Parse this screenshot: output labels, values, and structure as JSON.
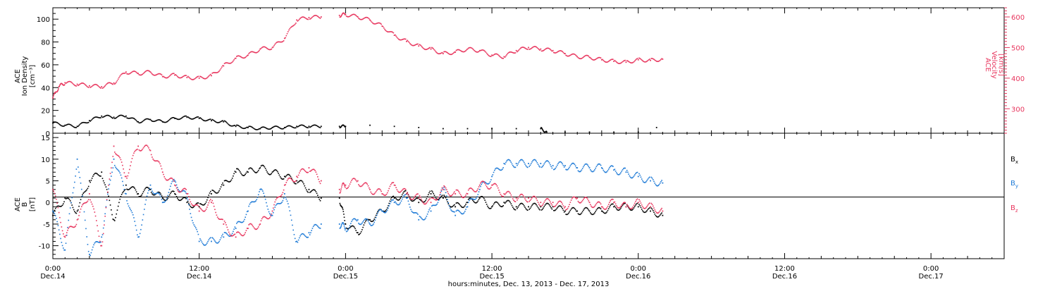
{
  "chart_data": [
    {
      "type": "scatter",
      "panel": "top",
      "ylabel_left": [
        "ACE",
        "Ion Density",
        "[cm⁻³]"
      ],
      "ylabel_right": [
        "ACE",
        "Velocity",
        "[km/s]"
      ],
      "ylim_left": [
        0,
        110
      ],
      "yticks_left": [
        0,
        20,
        40,
        60,
        80,
        100
      ],
      "ylim_right": [
        220,
        630
      ],
      "yticks_right": [
        300,
        400,
        500,
        600
      ],
      "series": [
        {
          "name": "",
          "axis": "left",
          "color": "#000000",
          "x": [
            0,
            1,
            2,
            3,
            4,
            5,
            6,
            7,
            8,
            9,
            10,
            11,
            12,
            13,
            14,
            15,
            16,
            17,
            18,
            19,
            20,
            21,
            22,
            23.5,
            24,
            26,
            28,
            30,
            32,
            34,
            36,
            38,
            40,
            40.5,
            42,
            44,
            46,
            48,
            49.5
          ],
          "y": [
            9,
            7,
            6,
            11,
            15,
            14,
            15,
            10,
            12,
            10,
            13,
            14,
            13,
            11,
            10,
            6,
            5,
            4,
            5,
            5,
            6,
            6,
            6,
            6,
            6,
            7,
            6,
            5,
            4,
            4,
            4,
            4,
            4,
            1,
            1,
            1,
            1,
            1,
            5
          ]
        },
        {
          "name": "",
          "axis": "right",
          "color": "#e8365e",
          "x": [
            0,
            0.5,
            1,
            2,
            3,
            4,
            5,
            6,
            7,
            8,
            9,
            10,
            11,
            12,
            13,
            14,
            15,
            16,
            17,
            18,
            19,
            20,
            21,
            22,
            23.5,
            24,
            25,
            26,
            27,
            28,
            29,
            30,
            31,
            32,
            33,
            34,
            35,
            36,
            37,
            38,
            39,
            40,
            41,
            42,
            43,
            44,
            45,
            46,
            47,
            48,
            49,
            50
          ],
          "y": [
            335,
            372,
            385,
            380,
            375,
            372,
            384,
            420,
            415,
            420,
            405,
            410,
            402,
            400,
            408,
            440,
            465,
            475,
            495,
            500,
            530,
            590,
            598,
            600,
            605,
            608,
            600,
            590,
            570,
            540,
            520,
            505,
            495,
            480,
            485,
            495,
            490,
            475,
            470,
            490,
            500,
            495,
            490,
            480,
            470,
            468,
            460,
            455,
            452,
            460,
            458,
            462
          ]
        }
      ]
    },
    {
      "type": "scatter",
      "panel": "bottom",
      "ylabel_left": [
        "ACE",
        "B",
        "[nT]"
      ],
      "ylim": [
        -13,
        16
      ],
      "yticks": [
        -10,
        -5,
        0,
        5,
        10,
        15
      ],
      "series": [
        {
          "name": "Bx",
          "color": "#000000",
          "x": [
            0,
            1,
            2,
            3,
            4,
            5,
            6,
            7,
            8,
            9,
            10,
            11,
            12,
            13,
            14,
            15,
            16,
            17,
            18,
            19,
            20,
            21,
            22,
            23.5,
            24,
            25,
            26,
            27,
            28,
            29,
            30,
            31,
            32,
            33,
            34,
            35,
            36,
            37,
            38,
            39,
            40,
            41,
            42,
            43,
            44,
            45,
            46,
            47,
            48,
            49,
            50
          ],
          "y": [
            -3,
            1,
            -2,
            5,
            7,
            -4,
            4,
            2,
            3,
            1,
            2,
            0,
            -1,
            2,
            4,
            7,
            7,
            8,
            7,
            6,
            5,
            3,
            1,
            1,
            -5,
            -7,
            -4,
            -2,
            1,
            2,
            0,
            2,
            1,
            -1,
            0,
            1,
            -1,
            0,
            -1,
            -1,
            -1,
            -1,
            -2,
            -2,
            -2,
            -2,
            -1,
            -1,
            -1,
            -2,
            -3
          ]
        },
        {
          "name": "By",
          "color": "#1e7ad6",
          "x": [
            0,
            1,
            2,
            3,
            4,
            5,
            6,
            7,
            8,
            9,
            10,
            11,
            12,
            13,
            14,
            15,
            16,
            17,
            18,
            19,
            20,
            21,
            22,
            23.5,
            24,
            25,
            26,
            27,
            28,
            29,
            30,
            31,
            32,
            33,
            34,
            35,
            36,
            37,
            38,
            39,
            40,
            41,
            42,
            43,
            44,
            45,
            46,
            47,
            48,
            49,
            50
          ],
          "y": [
            -2,
            -11,
            10,
            -12,
            -8,
            10,
            2,
            -8,
            4,
            0,
            5,
            1,
            -9,
            -9,
            -8,
            -6,
            -2,
            3,
            -3,
            2,
            -9,
            -7,
            -5,
            -5,
            -6,
            -4,
            -5,
            -2,
            0,
            1,
            -4,
            -2,
            3,
            -3,
            -1,
            3,
            6,
            9,
            9,
            9,
            9,
            8.5,
            8.5,
            8,
            8,
            8,
            7.5,
            7,
            6,
            5,
            4.5
          ]
        },
        {
          "name": "Bz",
          "color": "#e8365e",
          "x": [
            0,
            1,
            2,
            3,
            4,
            5,
            6,
            7,
            8,
            9,
            10,
            11,
            12,
            13,
            14,
            15,
            16,
            17,
            18,
            19,
            20,
            21,
            22,
            23.5,
            24,
            25,
            26,
            27,
            28,
            29,
            30,
            31,
            32,
            33,
            34,
            35,
            36,
            37,
            38,
            39,
            40,
            41,
            42,
            43,
            44,
            45,
            46,
            47,
            48,
            49,
            50
          ],
          "y": [
            3,
            -8,
            -4,
            2,
            -10,
            13,
            6,
            13,
            12,
            7,
            4,
            2,
            -2,
            0,
            -5,
            -8,
            -6,
            -5,
            -2,
            4,
            6,
            8,
            5,
            3,
            4,
            5,
            3,
            2,
            4,
            2,
            1,
            0,
            3,
            2,
            2,
            4,
            4,
            2,
            1,
            1,
            0,
            0,
            -1,
            1,
            0,
            -1,
            0,
            -1,
            0,
            -1,
            -2
          ]
        }
      ],
      "legend": [
        "Bx",
        "By",
        "Bz"
      ],
      "legend_placement": "right"
    }
  ],
  "xaxis": {
    "xlim": [
      0,
      78
    ],
    "major_ticks": [
      0,
      12,
      24,
      36,
      48,
      60,
      72
    ],
    "tick_labels": [
      [
        "0:00",
        "Dec.14"
      ],
      [
        "12:00",
        "Dec.14"
      ],
      [
        "0:00",
        "Dec.15"
      ],
      [
        "12:00",
        "Dec.15"
      ],
      [
        "0:00",
        "Dec.16"
      ],
      [
        "12:00",
        "Dec.16"
      ],
      [
        "0:00",
        "Dec.17"
      ]
    ],
    "title": "hours:minutes, Dec. 13, 2013 - Dec. 17, 2013"
  },
  "legend_labels": {
    "bx_main": "B",
    "bx_sub": "x",
    "by_main": "B",
    "by_sub": "y",
    "bz_main": "B",
    "bz_sub": "z"
  },
  "colors": {
    "black": "#000000",
    "blue": "#1e7ad6",
    "pink": "#e8365e"
  }
}
